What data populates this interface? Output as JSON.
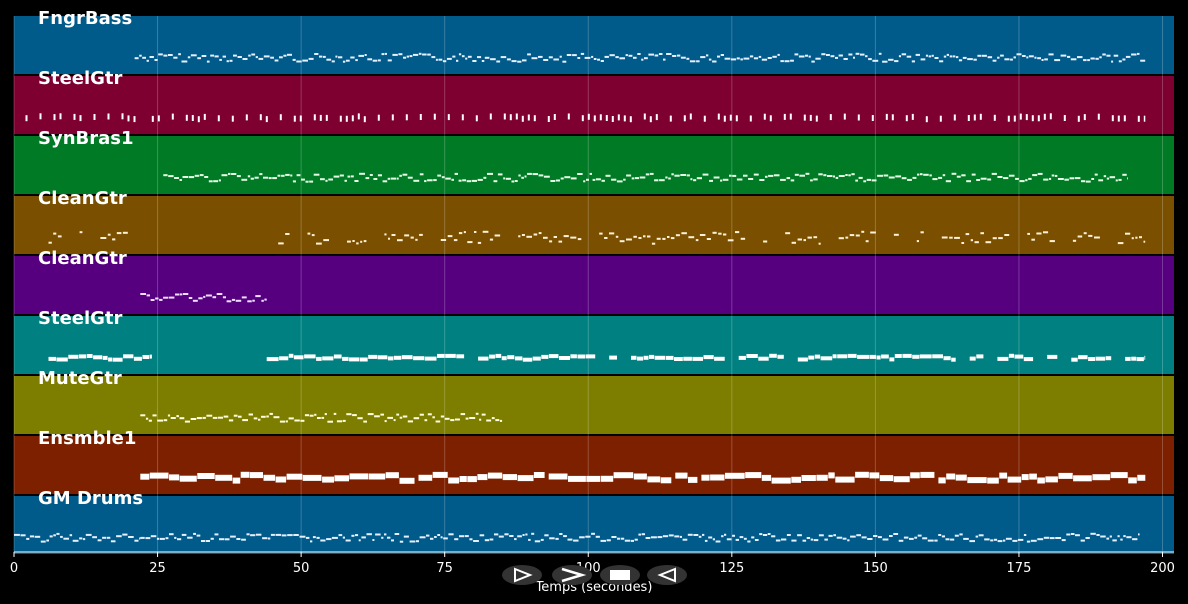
{
  "chart_data": {
    "type": "piano-roll",
    "xlabel": "Temps (secondes)",
    "xlim": [
      0,
      202
    ],
    "xticks": [
      0,
      25,
      50,
      75,
      100,
      125,
      150,
      175,
      200
    ],
    "grid": true,
    "tracks": [
      {
        "name": "FngrBass",
        "color": "#005a8a",
        "note_color": "#e6f0ff",
        "segments": [
          [
            21,
            197
          ]
        ],
        "style": "dense-line"
      },
      {
        "name": "SteelGtr",
        "color": "#7d0030",
        "note_color": "#ffffff",
        "segments": [
          [
            2,
            22
          ],
          [
            24,
            197
          ]
        ],
        "style": "sparse-ticks"
      },
      {
        "name": "SynBras1",
        "color": "#007a25",
        "note_color": "#e6ffe6",
        "segments": [
          [
            26,
            194
          ]
        ],
        "style": "dense-line"
      },
      {
        "name": "CleanGtr",
        "color": "#7a5000",
        "note_color": "#fff2d9",
        "segments": [
          [
            6,
            22
          ],
          [
            46,
            197
          ]
        ],
        "style": "scattered"
      },
      {
        "name": "CleanGtr",
        "color": "#560080",
        "note_color": "#f0e0ff",
        "segments": [
          [
            22,
            44
          ]
        ],
        "style": "dense-line"
      },
      {
        "name": "SteelGtr",
        "color": "#008080",
        "note_color": "#ffffff",
        "segments": [
          [
            6,
            24
          ],
          [
            44,
            197
          ]
        ],
        "style": "block-line"
      },
      {
        "name": "MuteGtr",
        "color": "#7d7d00",
        "note_color": "#ffffe0",
        "segments": [
          [
            22,
            85
          ]
        ],
        "style": "dense-line"
      },
      {
        "name": "Ensmble1",
        "color": "#7d2000",
        "note_color": "#ffffff",
        "segments": [
          [
            22,
            197
          ]
        ],
        "style": "thick-line"
      },
      {
        "name": "GM Drums",
        "color": "#005a8a",
        "note_color": "#e6f0ff",
        "segments": [
          [
            0,
            22
          ],
          [
            22,
            196
          ]
        ],
        "style": "dense-line"
      }
    ]
  },
  "transport": {
    "buttons": [
      {
        "name": "play-button",
        "icon": "play-outline-icon"
      },
      {
        "name": "fast-forward-button",
        "icon": "fast-forward-icon"
      },
      {
        "name": "stop-button",
        "icon": "stop-icon"
      },
      {
        "name": "rewind-button",
        "icon": "rewind-icon"
      }
    ]
  }
}
